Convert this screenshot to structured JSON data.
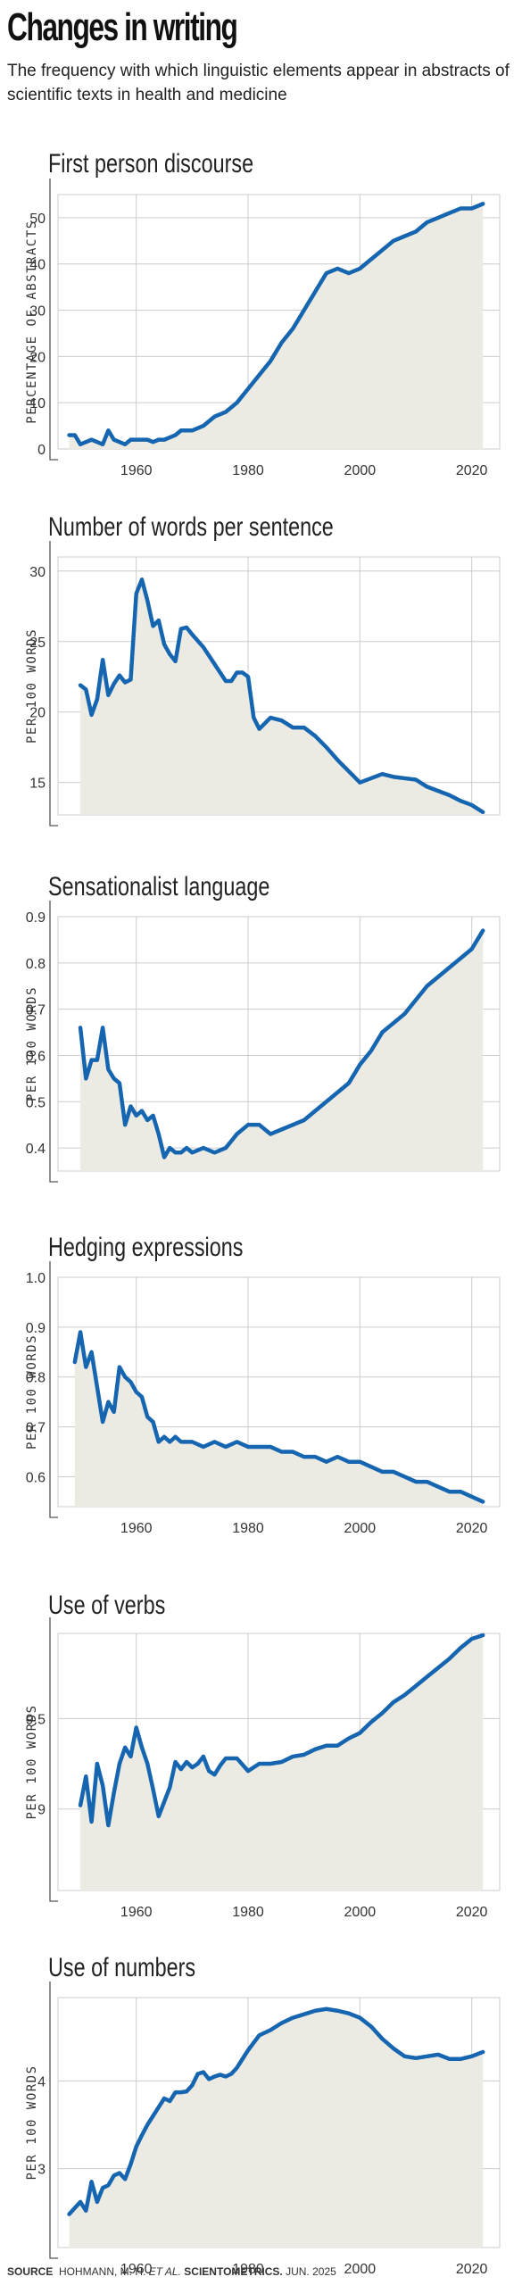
{
  "header": {
    "title": "Changes in writing",
    "subtitle": "The frequency with which linguistic elements appear in abstracts of scientific texts in health and medicine"
  },
  "source": {
    "label": "SOURCE",
    "authors": "HOHMANN, M. H.",
    "etal": "ET AL.",
    "journal": "SCIENTOMETRICS.",
    "date": "JUN. 2025"
  },
  "style": {
    "line_color": "#1565b0",
    "fill_color": "#ecebe3",
    "grid_color": "#cccccc"
  },
  "chart_data": [
    {
      "type": "area",
      "title": "First person discourse",
      "ylabel": "PERCENTAGE OF ABSTRACTS",
      "xlim": [
        1946,
        2025
      ],
      "ylim": [
        0,
        55
      ],
      "yticks": [
        0,
        10,
        20,
        30,
        40,
        50
      ],
      "xticks": [
        1960,
        1980,
        2000,
        2020
      ],
      "x": [
        1948,
        1949,
        1950,
        1951,
        1952,
        1953,
        1954,
        1955,
        1956,
        1957,
        1958,
        1959,
        1960,
        1961,
        1962,
        1963,
        1964,
        1965,
        1966,
        1967,
        1968,
        1969,
        1970,
        1972,
        1974,
        1976,
        1978,
        1980,
        1982,
        1984,
        1986,
        1988,
        1990,
        1992,
        1994,
        1996,
        1998,
        2000,
        2002,
        2003,
        2004,
        2006,
        2008,
        2010,
        2011,
        2012,
        2014,
        2016,
        2018,
        2020,
        2022
      ],
      "values": [
        3,
        3,
        1,
        1.5,
        2,
        1.5,
        1,
        4,
        2,
        1.5,
        1,
        2,
        2,
        2,
        2,
        1.5,
        2,
        2,
        2.5,
        3,
        4,
        4,
        4,
        5,
        7,
        8,
        10,
        13,
        16,
        19,
        23,
        26,
        30,
        34,
        38,
        39,
        38,
        39,
        41,
        42,
        43,
        45,
        46,
        47,
        48,
        49,
        50,
        51,
        52,
        52,
        53
      ]
    },
    {
      "type": "area",
      "title": "Number of words per sentence",
      "ylabel": "PER 100 WORDS",
      "xlim": [
        1946,
        2025
      ],
      "ylim": [
        12.7,
        31
      ],
      "yticks": [
        15,
        20,
        25,
        30
      ],
      "xticks": [
        1960,
        1980,
        2000,
        2020
      ],
      "x": [
        1950,
        1951,
        1952,
        1953,
        1954,
        1955,
        1956,
        1957,
        1958,
        1959,
        1960,
        1961,
        1962,
        1963,
        1964,
        1965,
        1966,
        1967,
        1968,
        1969,
        1970,
        1972,
        1974,
        1976,
        1977,
        1978,
        1979,
        1980,
        1981,
        1982,
        1984,
        1986,
        1988,
        1990,
        1992,
        1994,
        1996,
        1998,
        2000,
        2002,
        2004,
        2006,
        2008,
        2010,
        2012,
        2014,
        2016,
        2018,
        2020,
        2022
      ],
      "values": [
        21.9,
        21.6,
        19.8,
        20.9,
        23.7,
        21.2,
        22.0,
        22.6,
        22.1,
        22.3,
        28.4,
        29.4,
        27.9,
        26.1,
        26.5,
        24.8,
        24.1,
        23.6,
        25.9,
        26.0,
        25.5,
        24.6,
        23.4,
        22.2,
        22.2,
        22.8,
        22.8,
        22.5,
        19.6,
        18.8,
        19.6,
        19.4,
        18.9,
        18.9,
        18.3,
        17.5,
        16.6,
        15.8,
        15.0,
        15.3,
        15.6,
        15.4,
        15.3,
        15.2,
        14.7,
        14.4,
        14.1,
        13.7,
        13.4,
        12.9
      ]
    },
    {
      "type": "area",
      "title": "Sensationalist language",
      "ylabel": "PER 100 WORDS",
      "xlim": [
        1946,
        2025
      ],
      "ylim": [
        0.35,
        0.9
      ],
      "yticks": [
        0.4,
        0.5,
        0.6,
        0.7,
        0.8,
        0.9
      ],
      "xticks": [
        1960,
        1980,
        2000,
        2020
      ],
      "x": [
        1950,
        1951,
        1952,
        1953,
        1954,
        1955,
        1956,
        1957,
        1958,
        1959,
        1960,
        1961,
        1962,
        1963,
        1964,
        1965,
        1966,
        1967,
        1968,
        1969,
        1970,
        1972,
        1974,
        1976,
        1978,
        1980,
        1982,
        1984,
        1986,
        1988,
        1990,
        1992,
        1994,
        1996,
        1998,
        2000,
        2002,
        2004,
        2006,
        2008,
        2010,
        2012,
        2014,
        2016,
        2018,
        2020,
        2022
      ],
      "values": [
        0.66,
        0.55,
        0.59,
        0.59,
        0.66,
        0.57,
        0.55,
        0.54,
        0.45,
        0.49,
        0.47,
        0.48,
        0.46,
        0.47,
        0.43,
        0.38,
        0.4,
        0.39,
        0.39,
        0.4,
        0.39,
        0.4,
        0.39,
        0.4,
        0.43,
        0.45,
        0.45,
        0.43,
        0.44,
        0.45,
        0.46,
        0.48,
        0.5,
        0.52,
        0.54,
        0.58,
        0.61,
        0.65,
        0.67,
        0.69,
        0.72,
        0.75,
        0.77,
        0.79,
        0.81,
        0.83,
        0.87
      ]
    },
    {
      "type": "area",
      "title": "Hedging expressions",
      "ylabel": "PER 100 WORDS",
      "xlim": [
        1946,
        2025
      ],
      "ylim": [
        0.54,
        1.0
      ],
      "yticks": [
        0.6,
        0.7,
        0.8,
        0.9,
        1.0
      ],
      "xticks": [
        1960,
        1980,
        2000,
        2020
      ],
      "x": [
        1949,
        1950,
        1951,
        1952,
        1953,
        1954,
        1955,
        1956,
        1957,
        1958,
        1959,
        1960,
        1961,
        1962,
        1963,
        1964,
        1965,
        1966,
        1967,
        1968,
        1969,
        1970,
        1972,
        1974,
        1976,
        1978,
        1980,
        1982,
        1984,
        1986,
        1988,
        1990,
        1992,
        1994,
        1996,
        1998,
        2000,
        2002,
        2004,
        2006,
        2008,
        2010,
        2012,
        2014,
        2016,
        2018,
        2020,
        2022
      ],
      "values": [
        0.83,
        0.89,
        0.82,
        0.85,
        0.78,
        0.71,
        0.75,
        0.73,
        0.82,
        0.8,
        0.79,
        0.77,
        0.76,
        0.72,
        0.71,
        0.67,
        0.68,
        0.67,
        0.68,
        0.67,
        0.67,
        0.67,
        0.66,
        0.67,
        0.66,
        0.67,
        0.66,
        0.66,
        0.66,
        0.65,
        0.65,
        0.64,
        0.64,
        0.63,
        0.64,
        0.63,
        0.63,
        0.62,
        0.61,
        0.61,
        0.6,
        0.59,
        0.59,
        0.58,
        0.57,
        0.57,
        0.56,
        0.55
      ]
    },
    {
      "type": "area",
      "title": "Use of verbs",
      "ylabel": "PER 100 WORDS",
      "xlim": [
        1946,
        2025
      ],
      "ylim": [
        8.55,
        9.97
      ],
      "yticks": [
        9.0,
        9.5
      ],
      "xticks": [
        1960,
        1980,
        2000,
        2020
      ],
      "x": [
        1950,
        1951,
        1952,
        1953,
        1954,
        1955,
        1956,
        1957,
        1958,
        1959,
        1960,
        1961,
        1962,
        1963,
        1964,
        1965,
        1966,
        1967,
        1968,
        1969,
        1970,
        1971,
        1972,
        1973,
        1974,
        1975,
        1976,
        1978,
        1980,
        1982,
        1984,
        1986,
        1988,
        1990,
        1992,
        1994,
        1996,
        1998,
        2000,
        2002,
        2004,
        2006,
        2008,
        2010,
        2012,
        2014,
        2016,
        2018,
        2020,
        2022
      ],
      "values": [
        9.02,
        9.18,
        8.93,
        9.25,
        9.13,
        8.91,
        9.09,
        9.25,
        9.34,
        9.29,
        9.45,
        9.34,
        9.25,
        9.11,
        8.96,
        9.04,
        9.12,
        9.26,
        9.22,
        9.26,
        9.23,
        9.25,
        9.29,
        9.21,
        9.19,
        9.24,
        9.28,
        9.28,
        9.21,
        9.25,
        9.25,
        9.26,
        9.29,
        9.3,
        9.33,
        9.35,
        9.35,
        9.39,
        9.42,
        9.48,
        9.53,
        9.59,
        9.63,
        9.68,
        9.73,
        9.78,
        9.83,
        9.89,
        9.94,
        9.96
      ]
    },
    {
      "type": "area",
      "title": "Use of numbers",
      "ylabel": "PER 100 WORDS",
      "xlim": [
        1946,
        2025
      ],
      "ylim": [
        2.1,
        4.95
      ],
      "yticks": [
        3,
        4
      ],
      "xticks": [
        1960,
        1980,
        2000,
        2020
      ],
      "x": [
        1948,
        1949,
        1950,
        1951,
        1952,
        1953,
        1954,
        1955,
        1956,
        1957,
        1958,
        1959,
        1960,
        1961,
        1962,
        1963,
        1964,
        1965,
        1966,
        1967,
        1968,
        1969,
        1970,
        1971,
        1972,
        1973,
        1974,
        1975,
        1976,
        1977,
        1978,
        1979,
        1980,
        1982,
        1984,
        1986,
        1988,
        1990,
        1992,
        1994,
        1996,
        1998,
        2000,
        2002,
        2004,
        2006,
        2008,
        2010,
        2012,
        2014,
        2016,
        2018,
        2020,
        2022
      ],
      "values": [
        2.48,
        2.55,
        2.62,
        2.52,
        2.85,
        2.62,
        2.78,
        2.81,
        2.92,
        2.95,
        2.88,
        3.05,
        3.25,
        3.38,
        3.5,
        3.6,
        3.7,
        3.8,
        3.77,
        3.87,
        3.87,
        3.88,
        3.95,
        4.08,
        4.1,
        4.02,
        4.05,
        4.07,
        4.05,
        4.08,
        4.15,
        4.25,
        4.35,
        4.52,
        4.58,
        4.66,
        4.72,
        4.76,
        4.8,
        4.82,
        4.8,
        4.77,
        4.72,
        4.62,
        4.48,
        4.37,
        4.28,
        4.26,
        4.28,
        4.3,
        4.25,
        4.25,
        4.28,
        4.33
      ]
    }
  ]
}
